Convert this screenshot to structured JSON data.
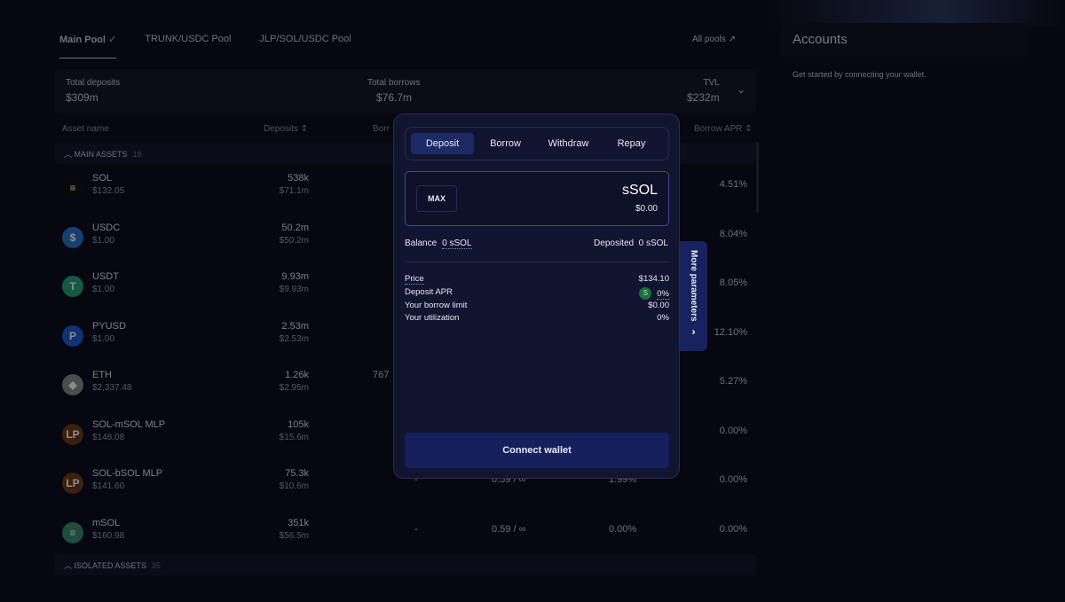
{
  "pool_tabs": [
    {
      "label": "Main Pool",
      "active": true
    },
    {
      "label": "TRUNK/USDC Pool"
    },
    {
      "label": "JLP/SOL/USDC Pool"
    }
  ],
  "all_pools": "All pools ↗",
  "stats": {
    "total_deposits_label": "Total deposits",
    "total_deposits": "$309m",
    "total_borrows_label": "Total borrows",
    "total_borrows": "$76.7m",
    "tvl_label": "TVL",
    "tvl": "$232m"
  },
  "table": {
    "headers": {
      "asset": "Asset name",
      "deposits": "Deposits ⇕",
      "borrows": "Borr",
      "borrow_apr": "Borrow APR ⇕"
    },
    "main_group": {
      "label": "MAIN ASSETS",
      "count": "18"
    },
    "isolated_group": {
      "label": "ISOLATED ASSETS",
      "count": "35"
    },
    "rows": [
      {
        "name": "SOL",
        "price": "$132.05",
        "deposits": "538k",
        "deposits_usd": "$71.1m",
        "borrow_apr": "4.51%",
        "icon": "sol-icon",
        "color": "#111"
      },
      {
        "name": "USDC",
        "price": "$1.00",
        "deposits": "50.2m",
        "deposits_usd": "$50.2m",
        "borrow_apr": "8.04%",
        "icon": "usdc-icon",
        "color": "#2775ca"
      },
      {
        "name": "USDT",
        "price": "$1.00",
        "deposits": "9.93m",
        "deposits_usd": "$9.93m",
        "borrow_apr": "8.05%",
        "icon": "usdt-icon",
        "color": "#26a17b"
      },
      {
        "name": "PYUSD",
        "price": "$1.00",
        "deposits": "2.53m",
        "deposits_usd": "$2.53m",
        "borrow_apr": "12.10%",
        "icon": "pyusd-icon",
        "color": "#1e5bd6"
      },
      {
        "name": "ETH",
        "price": "$2,337.48",
        "deposits": "1.26k",
        "deposits_usd": "$2.95m",
        "borrows": "767",
        "borrow_apr": "5.27%",
        "icon": "eth-icon",
        "color": "#8a8a8a"
      },
      {
        "name": "SOL-mSOL MLP",
        "price": "$148.08",
        "deposits": "105k",
        "deposits_usd": "$15.6m",
        "borrow_apr": "0.00%",
        "icon": "lp-icon",
        "color": "#6b3a1a"
      },
      {
        "name": "SOL-bSOL MLP",
        "price": "$141.60",
        "deposits": "75.3k",
        "deposits_usd": "$10.6m",
        "dash": "-",
        "ltv": "0.59 / ∞",
        "deposit_apr": "1.99%",
        "borrow_apr": "0.00%",
        "icon": "lp-icon",
        "color": "#6b3a1a"
      },
      {
        "name": "mSOL",
        "price": "$160.98",
        "deposits": "351k",
        "deposits_usd": "$56.5m",
        "dash": "-",
        "ltv": "0.59 / ∞",
        "deposit_apr": "0.00%",
        "borrow_apr": "0.00%",
        "icon": "msol-icon",
        "color": "#3a8a70"
      }
    ]
  },
  "accounts": {
    "title": "Accounts",
    "subtitle": "Get started by connecting your wallet."
  },
  "modal": {
    "tabs": [
      "Deposit",
      "Borrow",
      "Withdraw",
      "Repay"
    ],
    "active_tab": "Deposit",
    "max": "MAX",
    "token": "sSOL",
    "usd": "$0.00",
    "balance_label": "Balance",
    "balance": "0 sSOL",
    "deposited_label": "Deposited",
    "deposited": "0 sSOL",
    "params": [
      {
        "label": "Price",
        "value": "$134.10"
      },
      {
        "label": "Deposit APR",
        "value": "0%"
      },
      {
        "label": "Your borrow limit",
        "value": "$0.00"
      },
      {
        "label": "Your utilization",
        "value": "0%"
      }
    ],
    "connect": "Connect wallet",
    "more_parameters": "More parameters"
  }
}
